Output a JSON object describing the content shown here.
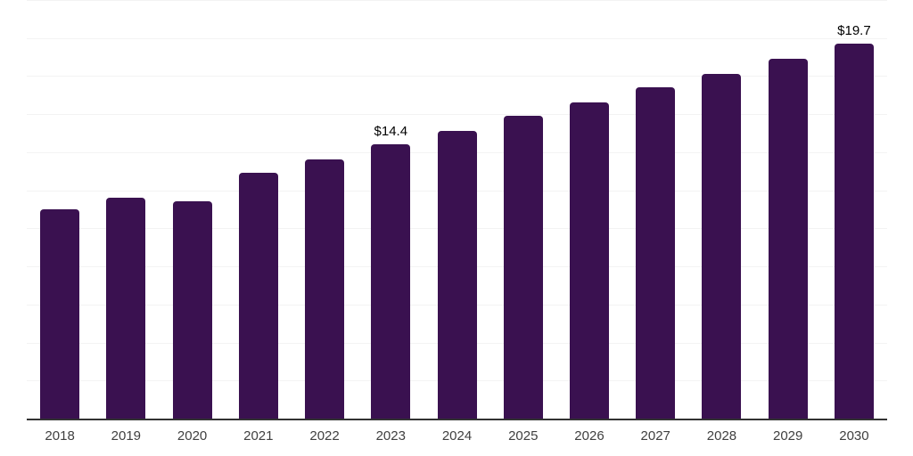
{
  "chart_data": {
    "type": "bar",
    "title": "",
    "xlabel": "",
    "ylabel": "",
    "categories": [
      "2018",
      "2019",
      "2020",
      "2021",
      "2022",
      "2023",
      "2024",
      "2025",
      "2026",
      "2027",
      "2028",
      "2029",
      "2030"
    ],
    "values": [
      11.0,
      11.6,
      11.4,
      12.9,
      13.6,
      14.4,
      15.1,
      15.9,
      16.6,
      17.4,
      18.1,
      18.9,
      19.7
    ],
    "data_labels": {
      "2023": "$14.4",
      "2030": "$19.7"
    },
    "ylim": [
      0,
      22
    ],
    "gridline_step": 2,
    "grid": true,
    "legend": false,
    "y_tick_labels_visible": false,
    "colors": {
      "bar": "#3a1150",
      "gridline": "#f3f3f3",
      "axis_line": "#333333",
      "data_label": "#000000",
      "tick_label": "#404040",
      "background": "#ffffff"
    }
  }
}
